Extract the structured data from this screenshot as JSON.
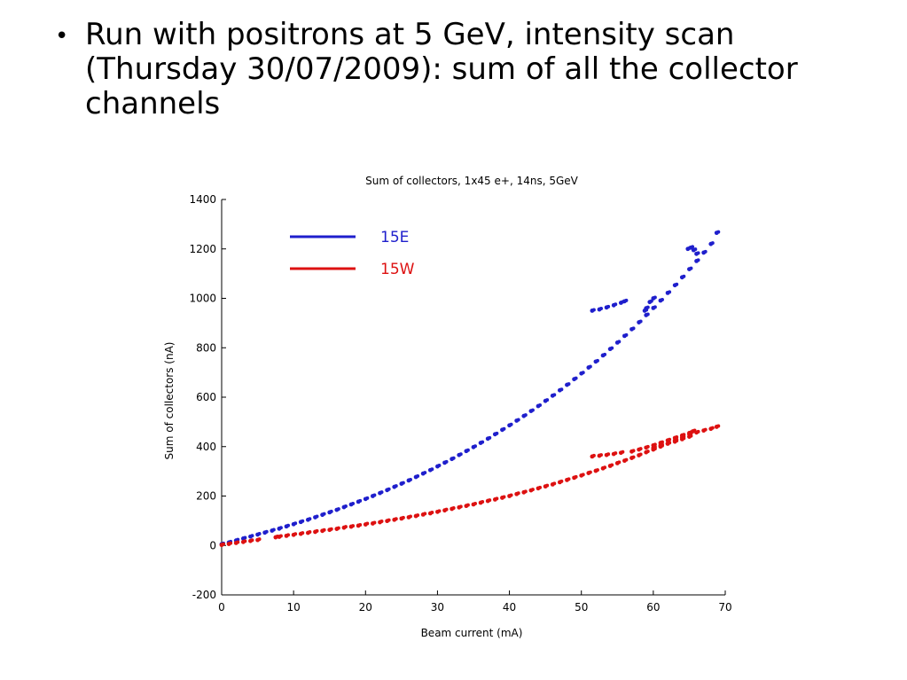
{
  "slide": {
    "bullet_glyph": "•",
    "bullet_text": "Run with positrons at 5 GeV, intensity scan (Thursday 30/07/2009): sum of all the collector channels"
  },
  "chart_data": {
    "type": "scatter",
    "title": "Sum of collectors, 1x45 e+, 14ns, 5GeV",
    "xlabel": "Beam current (mA)",
    "ylabel": "Sum of collectors (nA)",
    "xlim": [
      0,
      70
    ],
    "ylim": [
      -200,
      1400
    ],
    "xticks": [
      0,
      10,
      20,
      30,
      40,
      50,
      60,
      70
    ],
    "yticks": [
      -200,
      0,
      200,
      400,
      600,
      800,
      1000,
      1200,
      1400
    ],
    "grid": false,
    "legend_position": "top-left",
    "series": [
      {
        "name": "15E",
        "color": "#1f1fcc",
        "marker": "dot",
        "points": [
          [
            0,
            5
          ],
          [
            1,
            12
          ],
          [
            2,
            20
          ],
          [
            3,
            28
          ],
          [
            4,
            36
          ],
          [
            5,
            44
          ],
          [
            6,
            52
          ],
          [
            7,
            60
          ],
          [
            8,
            68
          ],
          [
            9,
            77
          ],
          [
            10,
            86
          ],
          [
            11,
            95
          ],
          [
            12,
            104
          ],
          [
            13,
            114
          ],
          [
            14,
            124
          ],
          [
            15,
            134
          ],
          [
            16,
            144
          ],
          [
            17,
            155
          ],
          [
            18,
            166
          ],
          [
            19,
            177
          ],
          [
            20,
            188
          ],
          [
            21,
            200
          ],
          [
            22,
            212
          ],
          [
            23,
            224
          ],
          [
            24,
            237
          ],
          [
            25,
            250
          ],
          [
            26,
            263
          ],
          [
            27,
            277
          ],
          [
            28,
            291
          ],
          [
            29,
            305
          ],
          [
            30,
            320
          ],
          [
            31,
            335
          ],
          [
            32,
            350
          ],
          [
            33,
            366
          ],
          [
            34,
            382
          ],
          [
            35,
            398
          ],
          [
            36,
            415
          ],
          [
            37,
            432
          ],
          [
            38,
            450
          ],
          [
            39,
            468
          ],
          [
            40,
            486
          ],
          [
            41,
            505
          ],
          [
            42,
            524
          ],
          [
            43,
            544
          ],
          [
            44,
            564
          ],
          [
            45,
            585
          ],
          [
            46,
            606
          ],
          [
            47,
            628
          ],
          [
            48,
            650
          ],
          [
            49,
            673
          ],
          [
            50,
            696
          ],
          [
            51,
            720
          ],
          [
            52,
            744
          ],
          [
            53,
            769
          ],
          [
            54,
            795
          ],
          [
            55,
            821
          ],
          [
            56,
            848
          ],
          [
            57,
            875
          ],
          [
            58,
            903
          ],
          [
            59,
            932
          ],
          [
            60,
            961
          ],
          [
            61,
            991
          ],
          [
            62,
            1022
          ],
          [
            63,
            1053
          ],
          [
            64,
            1085
          ],
          [
            65,
            1118
          ],
          [
            66,
            1151
          ],
          [
            67,
            1185
          ],
          [
            68,
            1220
          ],
          [
            68.8,
            1265
          ],
          [
            51.5,
            950
          ],
          [
            52.5,
            955
          ],
          [
            53.5,
            963
          ],
          [
            54.5,
            972
          ],
          [
            55.5,
            982
          ],
          [
            56,
            988
          ],
          [
            64.8,
            1200
          ],
          [
            65.2,
            1205
          ],
          [
            65.6,
            1195
          ],
          [
            66.0,
            1180
          ],
          [
            60,
            1000
          ],
          [
            59.5,
            985
          ],
          [
            59,
            960
          ],
          [
            58.8,
            950
          ]
        ]
      },
      {
        "name": "15W",
        "color": "#dd1111",
        "marker": "dot",
        "points": [
          [
            0,
            2
          ],
          [
            1,
            6
          ],
          [
            2,
            10
          ],
          [
            3,
            14
          ],
          [
            4,
            18
          ],
          [
            5,
            22
          ],
          [
            7.5,
            33
          ],
          [
            8,
            35
          ],
          [
            9,
            39
          ],
          [
            10,
            43
          ],
          [
            11,
            47
          ],
          [
            12,
            51
          ],
          [
            13,
            55
          ],
          [
            14,
            59
          ],
          [
            15,
            63
          ],
          [
            16,
            67
          ],
          [
            17,
            72
          ],
          [
            18,
            76
          ],
          [
            19,
            80
          ],
          [
            20,
            85
          ],
          [
            21,
            89
          ],
          [
            22,
            94
          ],
          [
            23,
            99
          ],
          [
            24,
            104
          ],
          [
            25,
            109
          ],
          [
            26,
            114
          ],
          [
            27,
            119
          ],
          [
            28,
            125
          ],
          [
            29,
            130
          ],
          [
            30,
            136
          ],
          [
            31,
            142
          ],
          [
            32,
            148
          ],
          [
            33,
            154
          ],
          [
            34,
            160
          ],
          [
            35,
            166
          ],
          [
            36,
            173
          ],
          [
            37,
            180
          ],
          [
            38,
            186
          ],
          [
            39,
            193
          ],
          [
            40,
            200
          ],
          [
            41,
            208
          ],
          [
            42,
            215
          ],
          [
            43,
            223
          ],
          [
            44,
            231
          ],
          [
            45,
            239
          ],
          [
            46,
            247
          ],
          [
            47,
            256
          ],
          [
            48,
            265
          ],
          [
            49,
            274
          ],
          [
            50,
            283
          ],
          [
            51,
            293
          ],
          [
            52,
            302
          ],
          [
            53,
            312
          ],
          [
            54,
            322
          ],
          [
            55,
            333
          ],
          [
            56,
            343
          ],
          [
            57,
            354
          ],
          [
            58,
            365
          ],
          [
            59,
            377
          ],
          [
            60,
            388
          ],
          [
            61,
            400
          ],
          [
            62,
            412
          ],
          [
            63,
            425
          ],
          [
            64,
            437
          ],
          [
            65,
            450
          ],
          [
            66,
            457
          ],
          [
            67,
            465
          ],
          [
            68,
            472
          ],
          [
            68.8,
            480
          ],
          [
            51.5,
            360
          ],
          [
            52.5,
            363
          ],
          [
            53.5,
            366
          ],
          [
            54.5,
            370
          ],
          [
            55.5,
            375
          ],
          [
            57,
            380
          ],
          [
            58,
            388
          ],
          [
            59,
            396
          ],
          [
            60,
            405
          ],
          [
            61,
            415
          ],
          [
            62,
            425
          ],
          [
            63,
            435
          ],
          [
            64,
            445
          ],
          [
            65,
            455
          ],
          [
            65.5,
            462
          ],
          [
            60,
            395
          ],
          [
            61,
            405
          ],
          [
            62,
            412
          ],
          [
            63,
            420
          ],
          [
            64,
            430
          ],
          [
            65,
            440
          ]
        ]
      }
    ]
  }
}
